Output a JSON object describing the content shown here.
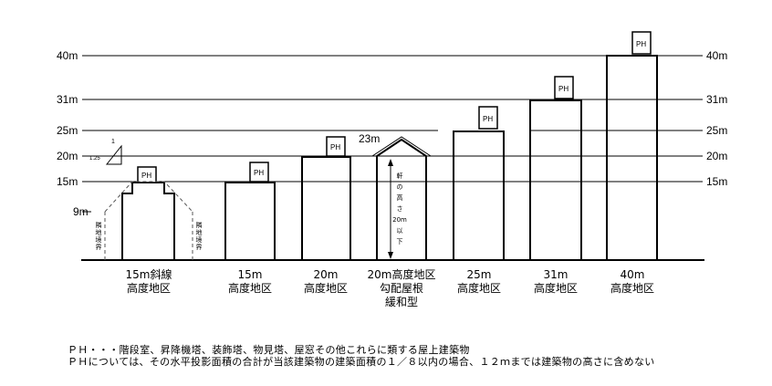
{
  "height_labels_left": {
    "h40": "40m",
    "h31": "31m",
    "h25": "25m",
    "h20": "20m",
    "h15": "15m",
    "h9": "9m"
  },
  "height_labels_right": {
    "h40": "40m",
    "h31": "31m",
    "h25": "25m",
    "h20": "20m",
    "h15": "15m"
  },
  "slope_label": {
    "rise": "1",
    "run": "1.25"
  },
  "ph_label": "PH",
  "boundary_label": "隣地境界",
  "eaves_text": [
    "軒",
    "の",
    "高",
    "さ",
    "20m",
    "以",
    "下"
  ],
  "roof_label": "23m",
  "districts": [
    {
      "lines": [
        "15m斜線",
        "高度地区"
      ]
    },
    {
      "lines": [
        "15m",
        "高度地区"
      ]
    },
    {
      "lines": [
        "20m",
        "高度地区"
      ]
    },
    {
      "lines": [
        "20m高度地区",
        "勾配屋根",
        "緩和型"
      ]
    },
    {
      "lines": [
        "25m",
        "高度地区"
      ]
    },
    {
      "lines": [
        "31m",
        "高度地区"
      ]
    },
    {
      "lines": [
        "40m",
        "高度地区"
      ]
    }
  ],
  "notes": [
    "ＰＨ・・・階段室、昇降機塔、装飾塔、物見塔、屋窓その他これらに類する屋上建築物",
    "ＰＨについては、その水平投影面積の合計が当該建築物の建築面積の１／８以内の場合、１２ｍまでは建築物の高さに含めない"
  ]
}
